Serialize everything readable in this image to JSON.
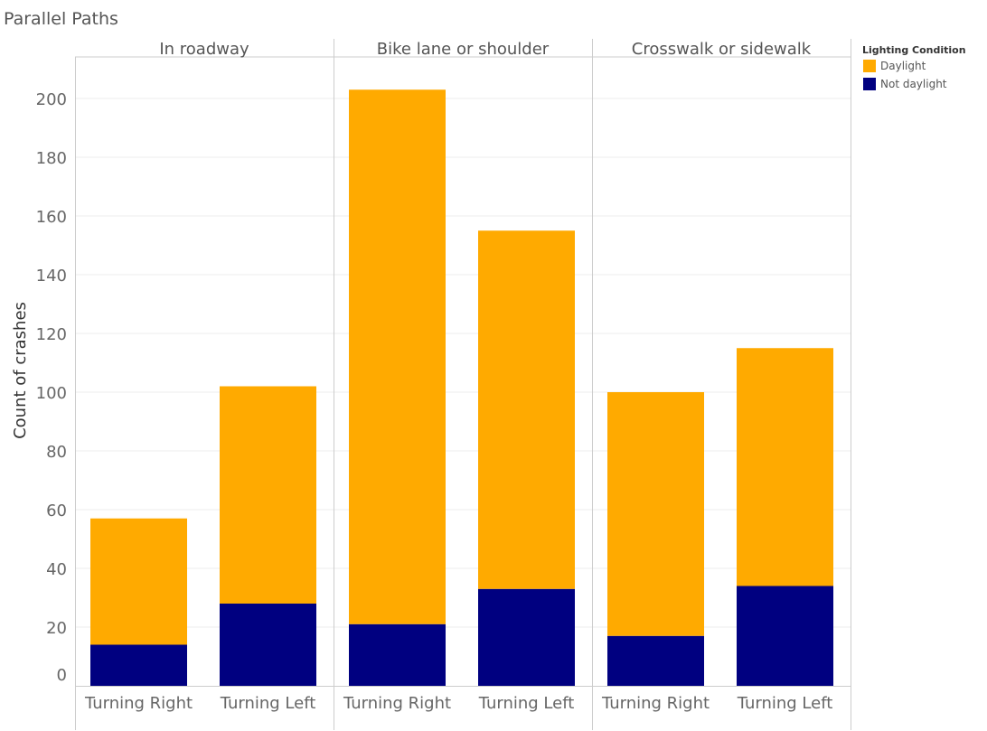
{
  "chart_data": {
    "type": "bar",
    "stacked": true,
    "title": "Parallel Paths",
    "ylabel": "Count of crashes",
    "xlabel": "",
    "ylim": [
      0,
      215
    ],
    "yticks": [
      0,
      20,
      40,
      60,
      80,
      100,
      120,
      140,
      160,
      180,
      200
    ],
    "grid": true,
    "legend_title": "Lighting Condition",
    "legend_position": "top-right",
    "panels": [
      "In roadway",
      "Bike lane or shoulder",
      "Crosswalk or sidewalk"
    ],
    "categories": [
      "Turning Right",
      "Turning Left"
    ],
    "series": [
      {
        "name": "Not daylight",
        "color": "#000080",
        "values": [
          [
            14,
            28
          ],
          [
            21,
            33
          ],
          [
            17,
            34
          ]
        ]
      },
      {
        "name": "Daylight",
        "color": "#ffaa00",
        "values": [
          [
            43,
            74
          ],
          [
            182,
            122
          ],
          [
            83,
            81
          ]
        ]
      }
    ]
  }
}
